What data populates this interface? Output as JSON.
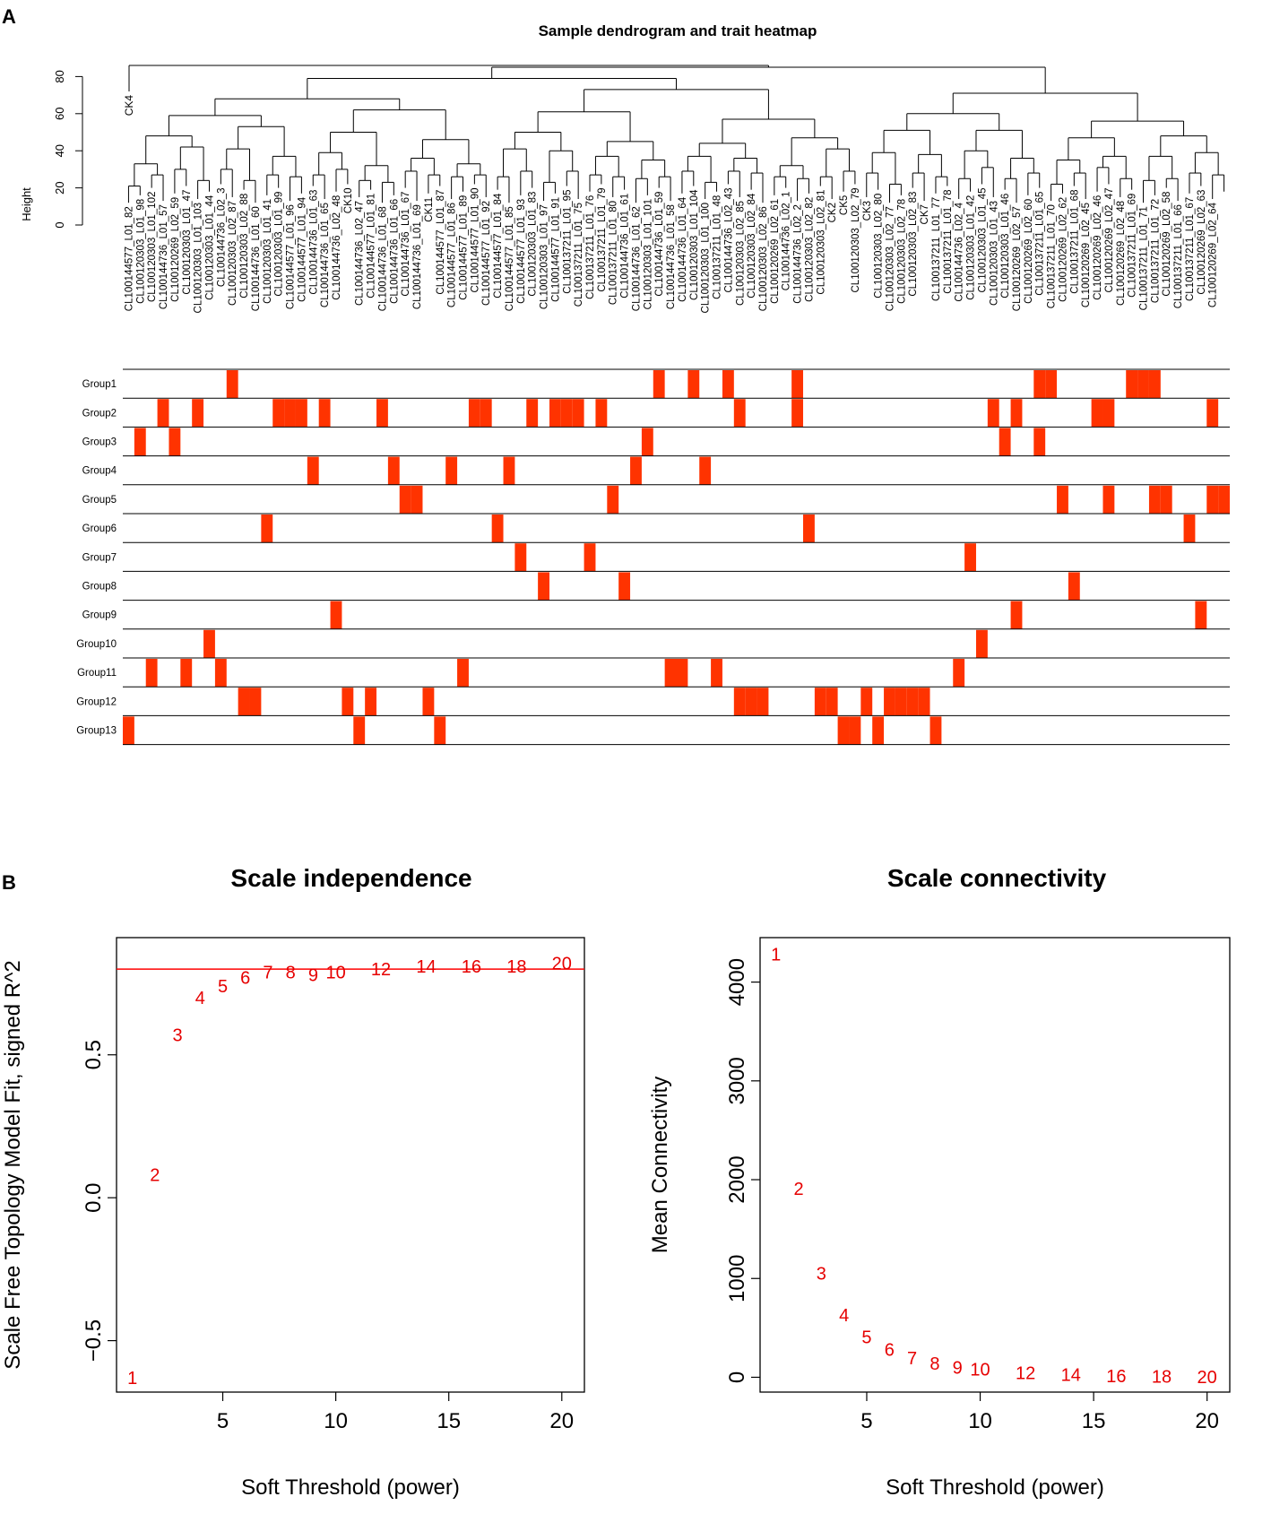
{
  "panel_labels": {
    "a": "A",
    "b": "B"
  },
  "colors": {
    "trait": "#ff3300",
    "axis": "#000000",
    "point": "#e60000",
    "cutoff": "#ff0000"
  },
  "dendrogram": {
    "title": "Sample dendrogram and trait heatmap",
    "ylabel": "Height",
    "yticks": [
      0,
      20,
      40,
      60,
      80
    ],
    "leaves": [
      "CL100144577_L01_82",
      "CL100120303_L01_98",
      "CL100120303_L01_102",
      "CL100144736_L01_57",
      "CL100120269_L02_59",
      "CL100120303_L01_47",
      "CL100120303_L01_103",
      "CL100120303_L01_44",
      "CL100144736_L02_3",
      "CL100120303_L02_87",
      "CL100120303_L02_88",
      "CL100144736_L01_60",
      "CL100120303_L01_41",
      "CL100120303_L01_99",
      "CL100144577_L01_96",
      "CL100144577_L01_94",
      "CL100144736_L01_63",
      "CL100144736_L01_65",
      "CL100144736_L02_48",
      "CK10",
      "CL100144736_L02_47",
      "CL100144577_L01_81",
      "CL100144736_L01_68",
      "CL100144736_L01_66",
      "CL100144736_L01_67",
      "CL100144736_L01_69",
      "CK11",
      "CL100144577_L01_87",
      "CL100144577_L01_86",
      "CL100144577_L01_89",
      "CL100144577_L01_90",
      "CL100144577_L01_92",
      "CL100144577_L01_84",
      "CL100144577_L01_85",
      "CL100144577_L01_93",
      "CL100120303_L01_83",
      "CL100120303_L01_97",
      "CL100144577_L01_91",
      "CL100137211_L01_95",
      "CL100137211_L01_75",
      "CL100137211_L01_76",
      "CL100137211_L01_79",
      "CL100137211_L01_80",
      "CL100144736_L01_61",
      "CL100144736_L01_62",
      "CL100120303_L01_101",
      "CL100144736_L01_59",
      "CL100144736_L01_58",
      "CL100144736_L01_64",
      "CL100120303_L01_104",
      "CL100120303_L01_100",
      "CL100137211_L01_48",
      "CL100144736_L02_43",
      "CL100120303_L02_85",
      "CL100120303_L02_84",
      "CL100120303_L02_86",
      "CL100120269_L02_61",
      "CL100144736_L02_1",
      "CL100144736_L02_2",
      "CL100120303_L02_82",
      "CL100120303_L02_81",
      "CK2",
      "CK5",
      "CL100120303_L02_79",
      "CK3",
      "CL100120303_L02_80",
      "CL100120303_L02_77",
      "CL100120303_L02_78",
      "CL100120303_L02_83",
      "CK7",
      "CL100137211_L01_77",
      "CL100137211_L01_78",
      "CL100144736_L02_4",
      "CL100120303_L01_42",
      "CL100120303_L01_45",
      "CL100120303_L01_43",
      "CL100120303_L01_46",
      "CL100120269_L02_57",
      "CL100120269_L02_60",
      "CL100137211_L01_65",
      "CL100137211_L01_70",
      "CL100120269_L02_62",
      "CL100137211_L01_68",
      "CL100120269_L02_45",
      "CL100120269_L02_46",
      "CL100120269_L02_47",
      "CL100120269_L02_48",
      "CL100137211_L01_69",
      "CL100137211_L01_71",
      "CL100137211_L01_72",
      "CL100120269_L02_58",
      "CL100137211_L01_66",
      "CL100137211_L01_67",
      "CL100120269_L02_63",
      "CL100120269_L02_64"
    ],
    "ck4_label": "CK4"
  },
  "heatmap": {
    "groups": [
      "Group1",
      "Group2",
      "Group3",
      "Group4",
      "Group5",
      "Group6",
      "Group7",
      "Group8",
      "Group9",
      "Group10",
      "Group11",
      "Group12",
      "Group13"
    ],
    "n_samples": 96,
    "cells": [
      [
        9,
        46,
        49,
        52,
        58,
        79,
        80,
        87,
        88,
        89
      ],
      [
        3,
        6,
        13,
        14,
        15,
        17,
        22,
        30,
        31,
        35,
        37,
        38,
        39,
        41,
        53,
        58,
        75,
        77,
        84,
        85,
        94
      ],
      [
        1,
        4,
        45,
        76,
        79
      ],
      [
        16,
        23,
        28,
        33,
        44,
        50
      ],
      [
        24,
        25,
        42,
        81,
        85,
        89,
        90,
        94,
        95
      ],
      [
        12,
        32,
        59,
        92
      ],
      [
        34,
        40,
        73
      ],
      [
        36,
        43,
        82
      ],
      [
        18,
        77,
        93
      ],
      [
        7,
        74
      ],
      [
        2,
        5,
        8,
        29,
        47,
        48,
        51,
        72
      ],
      [
        10,
        11,
        19,
        21,
        26,
        53,
        54,
        55,
        60,
        61,
        64,
        66,
        67,
        68,
        69
      ],
      [
        0,
        20,
        27,
        62,
        63,
        65,
        70
      ]
    ]
  },
  "chart_data": [
    {
      "type": "scatter",
      "title": "Scale independence",
      "xlabel": "Soft Threshold (power)",
      "ylabel": "Scale Free Topology Model Fit, signed R^2",
      "xlim": [
        0.3,
        21.0
      ],
      "ylim": [
        -0.68,
        0.91
      ],
      "xticks": [
        5,
        10,
        15,
        20
      ],
      "yticks": [
        -0.5,
        0.0,
        0.5
      ],
      "ytick_labels": [
        "−0.5",
        "0.0",
        "0.5"
      ],
      "cutoff": 0.8,
      "x": [
        1,
        2,
        3,
        4,
        5,
        6,
        7,
        8,
        9,
        10,
        12,
        14,
        16,
        18,
        20
      ],
      "y": [
        -0.63,
        0.08,
        0.57,
        0.7,
        0.74,
        0.77,
        0.79,
        0.79,
        0.78,
        0.79,
        0.8,
        0.81,
        0.81,
        0.81,
        0.82
      ],
      "labels": [
        "1",
        "2",
        "3",
        "4",
        "5",
        "6",
        "7",
        "8",
        "9",
        "10",
        "12",
        "14",
        "16",
        "18",
        "20"
      ]
    },
    {
      "type": "scatter",
      "title": "Scale connectivity",
      "xlabel": "Soft Threshold (power)",
      "ylabel": "Mean Connectivity",
      "xlim": [
        0.3,
        21.0
      ],
      "ylim": [
        -150,
        4450
      ],
      "xticks": [
        5,
        10,
        15,
        20
      ],
      "yticks": [
        0,
        1000,
        2000,
        3000,
        4000
      ],
      "ytick_labels": [
        "0",
        "1000",
        "2000",
        "3000",
        "4000"
      ],
      "x": [
        1,
        2,
        3,
        4,
        5,
        6,
        7,
        8,
        9,
        10,
        12,
        14,
        16,
        18,
        20
      ],
      "y": [
        4280,
        1910,
        1050,
        630,
        410,
        280,
        195,
        140,
        100,
        80,
        45,
        25,
        15,
        10,
        5
      ],
      "labels": [
        "1",
        "2",
        "3",
        "4",
        "5",
        "6",
        "7",
        "8",
        "9",
        "10",
        "12",
        "14",
        "16",
        "18",
        "20"
      ]
    }
  ]
}
